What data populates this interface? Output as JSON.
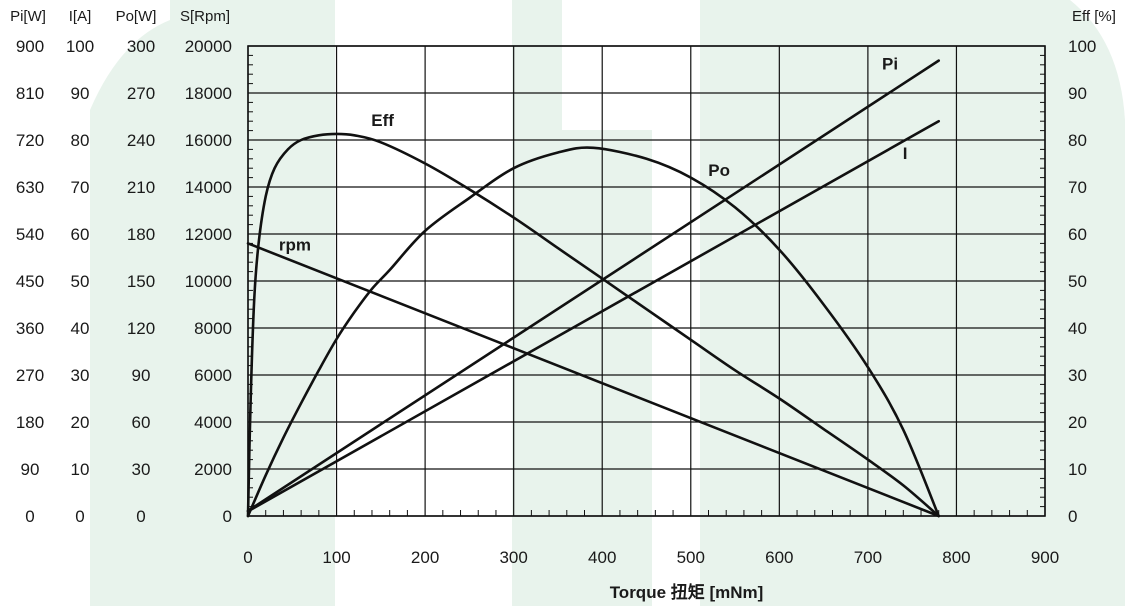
{
  "watermark_color": "#e8f3ec",
  "chart_data": {
    "type": "line",
    "xlabel": "Torque 扭矩 [mNm]",
    "xlim": [
      0,
      900
    ],
    "x_ticks": [
      "0",
      "100",
      "200",
      "300",
      "400",
      "500",
      "600",
      "700",
      "800",
      "900"
    ],
    "grid": true,
    "left_axes": [
      {
        "title": "Pi[W]",
        "ticks": [
          "0",
          "90",
          "180",
          "270",
          "360",
          "450",
          "540",
          "630",
          "720",
          "810",
          "900"
        ],
        "lim": [
          0,
          900
        ]
      },
      {
        "title": "I[A]",
        "ticks": [
          "0",
          "10",
          "20",
          "30",
          "40",
          "50",
          "60",
          "70",
          "80",
          "90",
          "100"
        ],
        "lim": [
          0,
          100
        ]
      },
      {
        "title": "Po[W]",
        "ticks": [
          "0",
          "30",
          "60",
          "90",
          "120",
          "150",
          "180",
          "210",
          "240",
          "270",
          "300"
        ],
        "lim": [
          0,
          300
        ]
      },
      {
        "title": "S[Rpm]",
        "ticks": [
          "0",
          "2000",
          "4000",
          "6000",
          "8000",
          "10000",
          "12000",
          "14000",
          "16000",
          "18000",
          "20000"
        ],
        "lim": [
          0,
          20000
        ]
      }
    ],
    "right_axis": {
      "title": "Eff [%]",
      "ticks": [
        "0",
        "10",
        "20",
        "30",
        "40",
        "50",
        "60",
        "70",
        "80",
        "90",
        "100"
      ],
      "lim": [
        0,
        100
      ]
    },
    "series": [
      {
        "name": "rpm",
        "axis": "S[Rpm]",
        "label_at": [
          53,
          11300
        ],
        "points": [
          [
            0,
            11600
          ],
          [
            780,
            0
          ]
        ]
      },
      {
        "name": "Pi",
        "axis": "Pi[W]",
        "label_at": [
          725,
          855
        ],
        "points": [
          [
            0,
            10
          ],
          [
            780,
            872
          ]
        ]
      },
      {
        "name": "I",
        "axis": "I[A]",
        "label_at": [
          742,
          76
        ],
        "points": [
          [
            0,
            1
          ],
          [
            780,
            84
          ]
        ]
      },
      {
        "name": "Po",
        "axis": "Po[W]",
        "label_at": [
          532,
          217
        ],
        "points": [
          [
            0,
            0
          ],
          [
            20,
            26
          ],
          [
            40,
            50
          ],
          [
            60,
            72
          ],
          [
            80,
            93
          ],
          [
            100,
            113
          ],
          [
            120,
            130
          ],
          [
            140,
            145
          ],
          [
            160,
            157
          ],
          [
            200,
            182
          ],
          [
            250,
            203
          ],
          [
            300,
            222
          ],
          [
            350,
            232
          ],
          [
            390,
            235
          ],
          [
            450,
            228
          ],
          [
            500,
            216
          ],
          [
            550,
            197
          ],
          [
            600,
            170
          ],
          [
            650,
            135
          ],
          [
            700,
            95
          ],
          [
            740,
            55
          ],
          [
            780,
            0
          ]
        ]
      },
      {
        "name": "Eff",
        "axis": "Eff [%]",
        "label_at": [
          152,
          83
        ],
        "points": [
          [
            0,
            0
          ],
          [
            3,
            25
          ],
          [
            7,
            46
          ],
          [
            12,
            58
          ],
          [
            20,
            68
          ],
          [
            30,
            74
          ],
          [
            45,
            78
          ],
          [
            60,
            80
          ],
          [
            80,
            81
          ],
          [
            100,
            81.3
          ],
          [
            120,
            81
          ],
          [
            150,
            79.5
          ],
          [
            200,
            75
          ],
          [
            250,
            69.5
          ],
          [
            300,
            63.5
          ],
          [
            350,
            57
          ],
          [
            400,
            50.5
          ],
          [
            450,
            44
          ],
          [
            500,
            37.5
          ],
          [
            550,
            31
          ],
          [
            600,
            25
          ],
          [
            650,
            18.5
          ],
          [
            700,
            12
          ],
          [
            740,
            6.5
          ],
          [
            780,
            0
          ]
        ]
      }
    ]
  }
}
